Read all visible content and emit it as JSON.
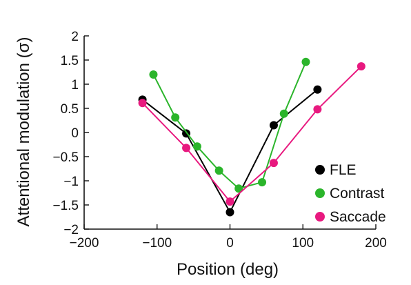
{
  "chart_data": {
    "type": "line",
    "xlabel": "Position (deg)",
    "ylabel": "Attentional modulation (σ)",
    "xlim": [
      -200,
      200
    ],
    "ylim": [
      -2,
      2
    ],
    "xticks": [
      -200,
      -100,
      0,
      100,
      200
    ],
    "yticks": [
      -2,
      -1.5,
      -1,
      -0.5,
      0,
      0.5,
      1,
      1.5,
      2
    ],
    "xtick_labels": [
      "−200",
      "−100",
      "0",
      "100",
      "200"
    ],
    "ytick_labels": [
      "−2",
      "−1.5",
      "−1",
      "−0.5",
      "0",
      "0.5",
      "1",
      "1.5",
      "2"
    ],
    "grid": false,
    "legend_position": "bottom-right",
    "series": [
      {
        "name": "FLE",
        "color": "#000000",
        "x": [
          -120,
          -60,
          0,
          60,
          120
        ],
        "y": [
          0.68,
          -0.02,
          -1.65,
          0.15,
          0.89
        ]
      },
      {
        "name": "Contrast",
        "color": "#2bb52b",
        "x": [
          -105,
          -75,
          -45,
          -15,
          12,
          44,
          74,
          104
        ],
        "y": [
          1.2,
          0.31,
          -0.29,
          -0.79,
          -1.16,
          -1.03,
          0.39,
          1.46
        ]
      },
      {
        "name": "Saccade",
        "color": "#e8197f",
        "x": [
          -120,
          -60,
          0,
          60,
          120,
          180
        ],
        "y": [
          0.61,
          -0.32,
          -1.43,
          -0.63,
          0.48,
          1.37
        ]
      }
    ]
  }
}
